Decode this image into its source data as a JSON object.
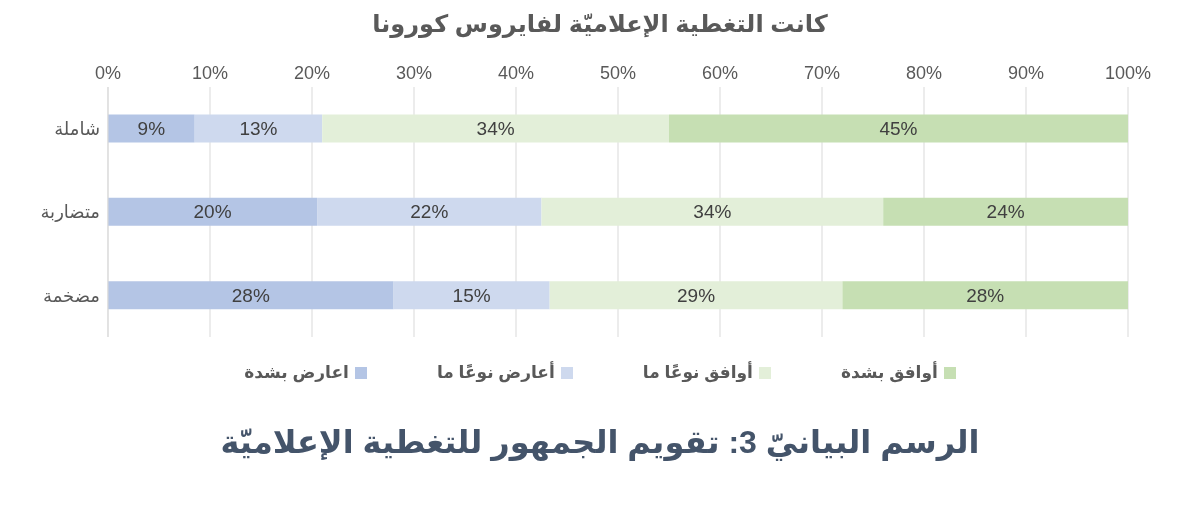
{
  "chart_data": {
    "type": "bar",
    "orientation": "horizontal",
    "stacked": true,
    "title": "كانت التغطية الإعلاميّة لفايروس كورونا",
    "categories": [
      "شاملة",
      "متضاربة",
      "مضخمة"
    ],
    "series": [
      {
        "name": "اعارض بشدة",
        "color": "#b4c5e5",
        "values": [
          8.5,
          20.5,
          28
        ],
        "value_labels": [
          "9%",
          "20%",
          "28%"
        ]
      },
      {
        "name": "أعارض نوعًا ما",
        "color": "#ced9ee",
        "values": [
          12.5,
          22,
          15.3
        ],
        "value_labels": [
          "13%",
          "22%",
          "15%"
        ]
      },
      {
        "name": "أوافق نوعًا ما",
        "color": "#e3efd9",
        "values": [
          34,
          33.5,
          28.7
        ],
        "value_labels": [
          "34%",
          "34%",
          "29%"
        ]
      },
      {
        "name": "أوافق بشدة",
        "color": "#c6dfb3",
        "values": [
          45,
          24,
          28
        ],
        "value_labels": [
          "45%",
          "24%",
          "28%"
        ]
      }
    ],
    "xlim": [
      0,
      100
    ],
    "xticks": [
      {
        "value": 0,
        "label": "0%"
      },
      {
        "value": 10,
        "label": "10%"
      },
      {
        "value": 20,
        "label": "20%"
      },
      {
        "value": 30,
        "label": "30%"
      },
      {
        "value": 40,
        "label": "40%"
      },
      {
        "value": 50,
        "label": "50%"
      },
      {
        "value": 60,
        "label": "60%"
      },
      {
        "value": 70,
        "label": "70%"
      },
      {
        "value": 80,
        "label": "80%"
      },
      {
        "value": 90,
        "label": "90%"
      },
      {
        "value": 100,
        "label": "100%"
      }
    ],
    "grid": "x",
    "legend": "bottom",
    "annotations": [
      "الرسم البيانيّ 3: تقويم الجمهور للتغطية الإعلاميّة"
    ]
  }
}
